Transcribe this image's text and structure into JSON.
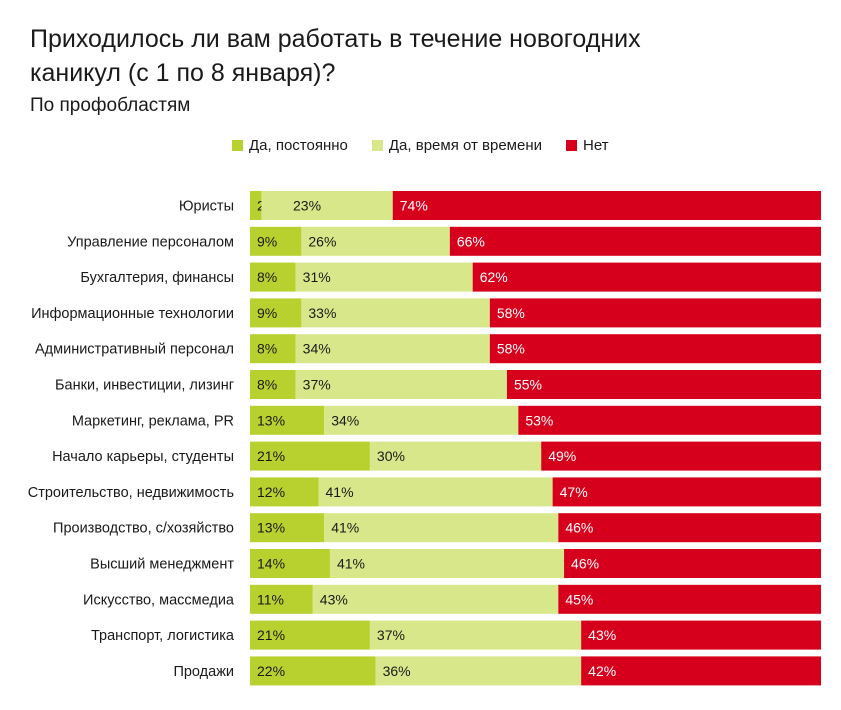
{
  "title": "Приходилось ли вам работать в течение новогодних каникул (с 1 по 8 января)?",
  "subtitle": "По профобластям",
  "colors": {
    "constantly": "#b9d12f",
    "sometimes": "#d8e789",
    "no": "#d6001c"
  },
  "chart_data": {
    "type": "bar",
    "orientation": "horizontal",
    "stacked": true,
    "title": "Приходилось ли вам работать в течение новогодних каникул (с 1 по 8 января)?",
    "subtitle": "По профобластям",
    "legend_position": "top",
    "categories": [
      "Юристы",
      "Управление персоналом",
      "Бухгалтерия, финансы",
      "Информационные технологии",
      "Административный персонал",
      "Банки, инвестиции, лизинг",
      "Маркетинг, реклама, PR",
      "Начало карьеры, студенты",
      "Строительство, недвижимость",
      "Производство, с/хозяйство",
      "Высший менеджмент",
      "Искусство, массмедиа",
      "Транспорт, логистика",
      "Продажи"
    ],
    "series": [
      {
        "name": "Да, постоянно",
        "values": [
          2,
          9,
          8,
          9,
          8,
          8,
          13,
          21,
          12,
          13,
          14,
          11,
          21,
          22
        ]
      },
      {
        "name": "Да, время от времени",
        "values": [
          23,
          26,
          31,
          33,
          34,
          37,
          34,
          30,
          41,
          41,
          41,
          43,
          37,
          36
        ]
      },
      {
        "name": "Нет",
        "values": [
          74,
          66,
          62,
          58,
          58,
          55,
          53,
          49,
          47,
          46,
          46,
          45,
          43,
          42
        ]
      }
    ],
    "value_suffix": "%",
    "xlim": [
      0,
      100
    ]
  }
}
